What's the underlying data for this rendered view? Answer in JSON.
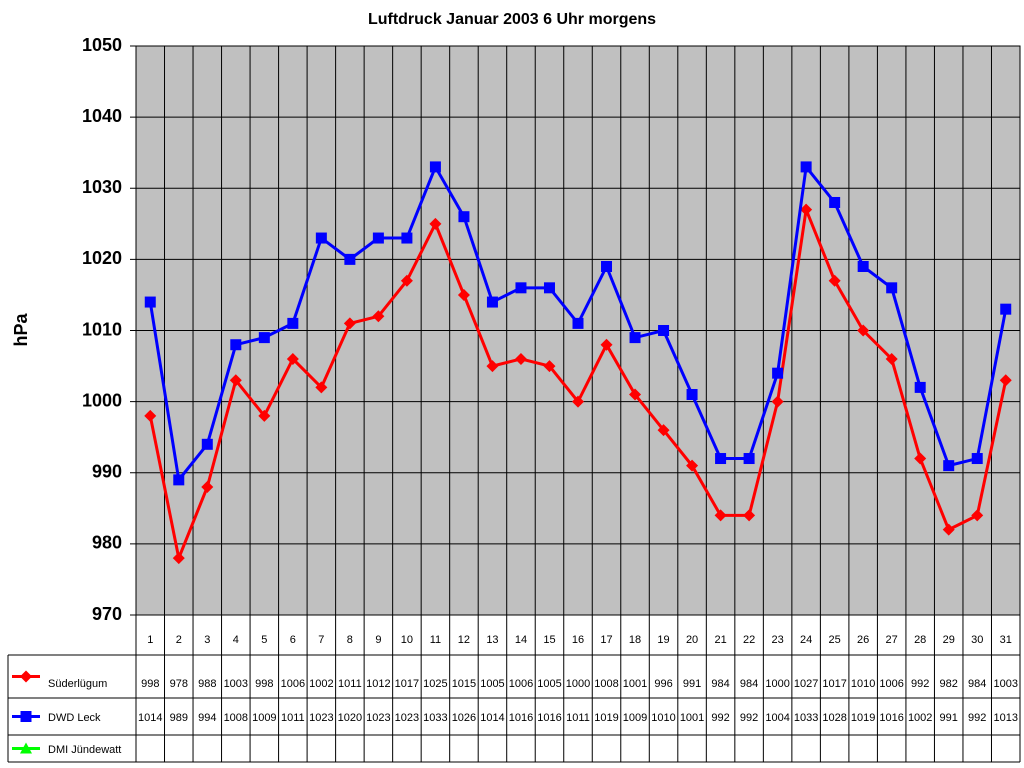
{
  "chart_data": {
    "type": "line",
    "title": "Luftdruck Januar 2003 6 Uhr morgens",
    "y_label": "hPa",
    "categories": [
      "1",
      "2",
      "3",
      "4",
      "5",
      "6",
      "7",
      "8",
      "9",
      "10",
      "11",
      "12",
      "13",
      "14",
      "15",
      "16",
      "17",
      "18",
      "19",
      "20",
      "21",
      "22",
      "23",
      "24",
      "25",
      "26",
      "27",
      "28",
      "29",
      "30",
      "31"
    ],
    "series": [
      {
        "name": "Süderlügum",
        "color": "#ff0000",
        "marker": "diamond",
        "values": [
          998,
          978,
          988,
          1003,
          998,
          1006,
          1002,
          1011,
          1012,
          1017,
          1025,
          1015,
          1005,
          1006,
          1005,
          1000,
          1008,
          1001,
          996,
          991,
          984,
          984,
          1000,
          1027,
          1017,
          1010,
          1006,
          992,
          982,
          984,
          1003
        ]
      },
      {
        "name": "DWD Leck",
        "color": "#0000ff",
        "marker": "square",
        "values": [
          1014,
          989,
          994,
          1008,
          1009,
          1011,
          1023,
          1020,
          1023,
          1023,
          1033,
          1026,
          1014,
          1016,
          1016,
          1011,
          1019,
          1009,
          1010,
          1001,
          992,
          992,
          1004,
          1033,
          1028,
          1019,
          1016,
          1002,
          991,
          992,
          1013
        ]
      },
      {
        "name": "DMI Jündewatt",
        "color": "#00ff00",
        "marker": "triangle",
        "values": [
          null,
          null,
          null,
          null,
          null,
          null,
          null,
          null,
          null,
          null,
          null,
          null,
          null,
          null,
          null,
          null,
          null,
          null,
          null,
          null,
          null,
          null,
          null,
          null,
          null,
          null,
          null,
          null,
          null,
          null,
          null
        ]
      }
    ],
    "ylim": [
      970,
      1050
    ],
    "yticks": [
      970,
      980,
      990,
      1000,
      1010,
      1020,
      1030,
      1040,
      1050
    ],
    "grid": true,
    "plot_background": "#c0c0c0"
  }
}
